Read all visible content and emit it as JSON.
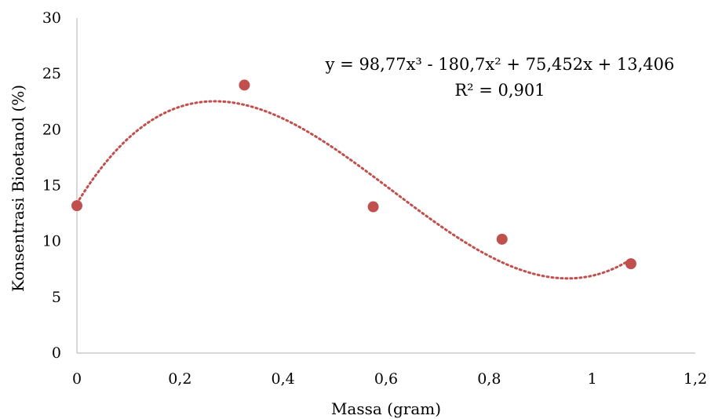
{
  "chart_data": {
    "type": "scatter",
    "xlabel": "Massa (gram)",
    "ylabel": "Konsentrasi Bioetanol (%)",
    "xlim": [
      0,
      1.2
    ],
    "ylim": [
      0,
      30
    ],
    "x_ticks": [
      0,
      0.2,
      0.4,
      0.6,
      0.8,
      1,
      1.2
    ],
    "x_tick_labels": [
      "0",
      "0,2",
      "0,4",
      "0,6",
      "0,8",
      "1",
      "1,2"
    ],
    "y_ticks": [
      0,
      5,
      10,
      15,
      20,
      25,
      30
    ],
    "y_tick_labels": [
      "0",
      "5",
      "10",
      "15",
      "20",
      "25",
      "30"
    ],
    "grid": false,
    "series": [
      {
        "x": [
          0,
          0.325,
          0.575,
          0.825,
          1.075
        ],
        "y": [
          13.2,
          24.0,
          13.1,
          10.2,
          8.0
        ]
      }
    ],
    "trendline": {
      "type": "polynomial-3",
      "coefficients": [
        98.77,
        -180.7,
        75.452,
        13.406
      ],
      "equation": "y = 98,77x³ - 180,7x² + 75,452x + 13,406",
      "r_squared": "R² = 0,901",
      "x_range": [
        0,
        1.075
      ]
    },
    "colors": {
      "marker": "#c0504d",
      "trendline": "#c0504d",
      "axis": "#bfbfbf"
    }
  }
}
